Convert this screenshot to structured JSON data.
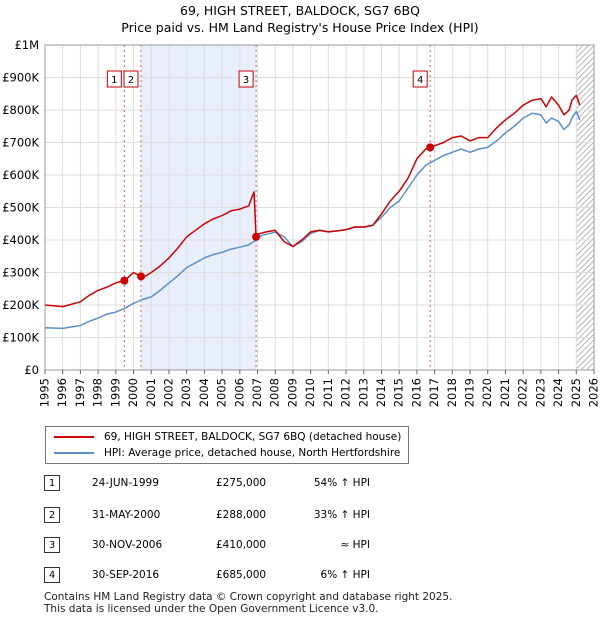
{
  "title_line1": "69, HIGH STREET, BALDOCK, SG7 6BQ",
  "title_line2": "Price paid vs. HM Land Registry's House Price Index (HPI)",
  "chart_data": {
    "type": "line",
    "xlim": [
      1995,
      2026
    ],
    "ylim": [
      0,
      1000000
    ],
    "y_ticks": [
      0,
      100000,
      200000,
      300000,
      400000,
      500000,
      600000,
      700000,
      800000,
      900000,
      1000000
    ],
    "y_tick_labels": [
      "£0",
      "£100K",
      "£200K",
      "£300K",
      "£400K",
      "£500K",
      "£600K",
      "£700K",
      "£800K",
      "£900K",
      "£1M"
    ],
    "x_ticks": [
      1995,
      1996,
      1997,
      1998,
      1999,
      2000,
      2001,
      2002,
      2003,
      2004,
      2005,
      2006,
      2007,
      2008,
      2009,
      2010,
      2011,
      2012,
      2013,
      2014,
      2015,
      2016,
      2017,
      2018,
      2019,
      2020,
      2021,
      2022,
      2023,
      2024,
      2025,
      2026
    ],
    "grid": true,
    "shaded_spans": [
      [
        2000.42,
        2006.92
      ]
    ],
    "hatched_from": 2025.0,
    "series": [
      {
        "name": "69, HIGH STREET, BALDOCK, SG7 6BQ (detached house)",
        "color": "#cc0000",
        "x": [
          1995,
          1996,
          1997,
          1997.5,
          1998,
          1998.5,
          1999,
          1999.48,
          1999.7,
          2000,
          2000.42,
          2000.7,
          2001,
          2001.5,
          2002,
          2002.5,
          2003,
          2003.5,
          2004,
          2004.5,
          2005,
          2005.5,
          2006,
          2006.5,
          2006.8,
          2006.92,
          2007,
          2007.5,
          2008,
          2008.5,
          2009,
          2009.5,
          2010,
          2010.5,
          2011,
          2011.5,
          2012,
          2012.5,
          2013,
          2013.5,
          2014,
          2014.5,
          2015,
          2015.5,
          2016,
          2016.5,
          2016.75,
          2017,
          2017.5,
          2018,
          2018.5,
          2019,
          2019.5,
          2020,
          2020.5,
          2021,
          2021.5,
          2022,
          2022.5,
          2023,
          2023.3,
          2023.6,
          2024,
          2024.3,
          2024.6,
          2024.75,
          2025,
          2025.2
        ],
        "values": [
          200000,
          195000,
          210000,
          230000,
          245000,
          255000,
          268000,
          275000,
          285000,
          300000,
          288000,
          290000,
          300000,
          320000,
          345000,
          375000,
          410000,
          430000,
          450000,
          465000,
          475000,
          490000,
          495000,
          505000,
          548000,
          410000,
          418000,
          425000,
          430000,
          395000,
          380000,
          400000,
          425000,
          430000,
          425000,
          428000,
          432000,
          440000,
          440000,
          445000,
          480000,
          520000,
          550000,
          590000,
          650000,
          680000,
          685000,
          690000,
          700000,
          715000,
          720000,
          705000,
          715000,
          715000,
          745000,
          770000,
          790000,
          815000,
          830000,
          835000,
          810000,
          840000,
          815000,
          785000,
          800000,
          830000,
          845000,
          815000
        ]
      },
      {
        "name": "HPI: Average price, detached house, North Hertfordshire",
        "color": "#5b8fc9",
        "x": [
          1995,
          1996,
          1997,
          1997.5,
          1998,
          1998.5,
          1999,
          1999.5,
          2000,
          2000.5,
          2001,
          2001.5,
          2002,
          2002.5,
          2003,
          2003.5,
          2004,
          2004.5,
          2005,
          2005.5,
          2006,
          2006.5,
          2006.92,
          2007,
          2007.5,
          2008,
          2008.5,
          2009,
          2009.5,
          2010,
          2010.5,
          2011,
          2011.5,
          2012,
          2012.5,
          2013,
          2013.5,
          2014,
          2014.5,
          2015,
          2015.5,
          2016,
          2016.5,
          2017,
          2017.5,
          2018,
          2018.5,
          2019,
          2019.5,
          2020,
          2020.5,
          2021,
          2021.5,
          2022,
          2022.5,
          2023,
          2023.3,
          2023.6,
          2024,
          2024.3,
          2024.6,
          2024.8,
          2025,
          2025.2
        ],
        "values": [
          130000,
          128000,
          137000,
          150000,
          160000,
          172000,
          178000,
          190000,
          205000,
          217000,
          225000,
          245000,
          268000,
          290000,
          315000,
          330000,
          345000,
          355000,
          362000,
          372000,
          378000,
          385000,
          400000,
          410000,
          418000,
          424000,
          410000,
          380000,
          395000,
          420000,
          430000,
          425000,
          428000,
          432000,
          440000,
          440000,
          445000,
          470000,
          500000,
          520000,
          560000,
          600000,
          630000,
          645000,
          660000,
          670000,
          680000,
          670000,
          680000,
          685000,
          705000,
          730000,
          750000,
          775000,
          790000,
          785000,
          760000,
          775000,
          765000,
          740000,
          755000,
          780000,
          795000,
          770000
        ]
      }
    ],
    "sales": [
      {
        "label": "1",
        "x": 1999.48,
        "price": 275000,
        "date": "24-JUN-1999",
        "price_text": "£275,000",
        "hpi_text": "54% ↑ HPI"
      },
      {
        "label": "2",
        "x": 2000.42,
        "price": 288000,
        "date": "31-MAY-2000",
        "price_text": "£288,000",
        "hpi_text": "33% ↑ HPI"
      },
      {
        "label": "3",
        "x": 2006.92,
        "price": 410000,
        "date": "30-NOV-2006",
        "price_text": "£410,000",
        "hpi_text": "≈ HPI"
      },
      {
        "label": "4",
        "x": 2016.75,
        "price": 685000,
        "date": "30-SEP-2016",
        "price_text": "£685,000",
        "hpi_text": "6% ↑ HPI"
      }
    ]
  },
  "legend": {
    "items": [
      {
        "label": "69, HIGH STREET, BALDOCK, SG7 6BQ (detached house)",
        "color": "#cc0000"
      },
      {
        "label": "HPI: Average price, detached house, North Hertfordshire",
        "color": "#5b8fc9"
      }
    ]
  },
  "footer": {
    "line1": "Contains HM Land Registry data © Crown copyright and database right 2025.",
    "line2": "This data is licensed under the Open Government Licence v3.0."
  }
}
